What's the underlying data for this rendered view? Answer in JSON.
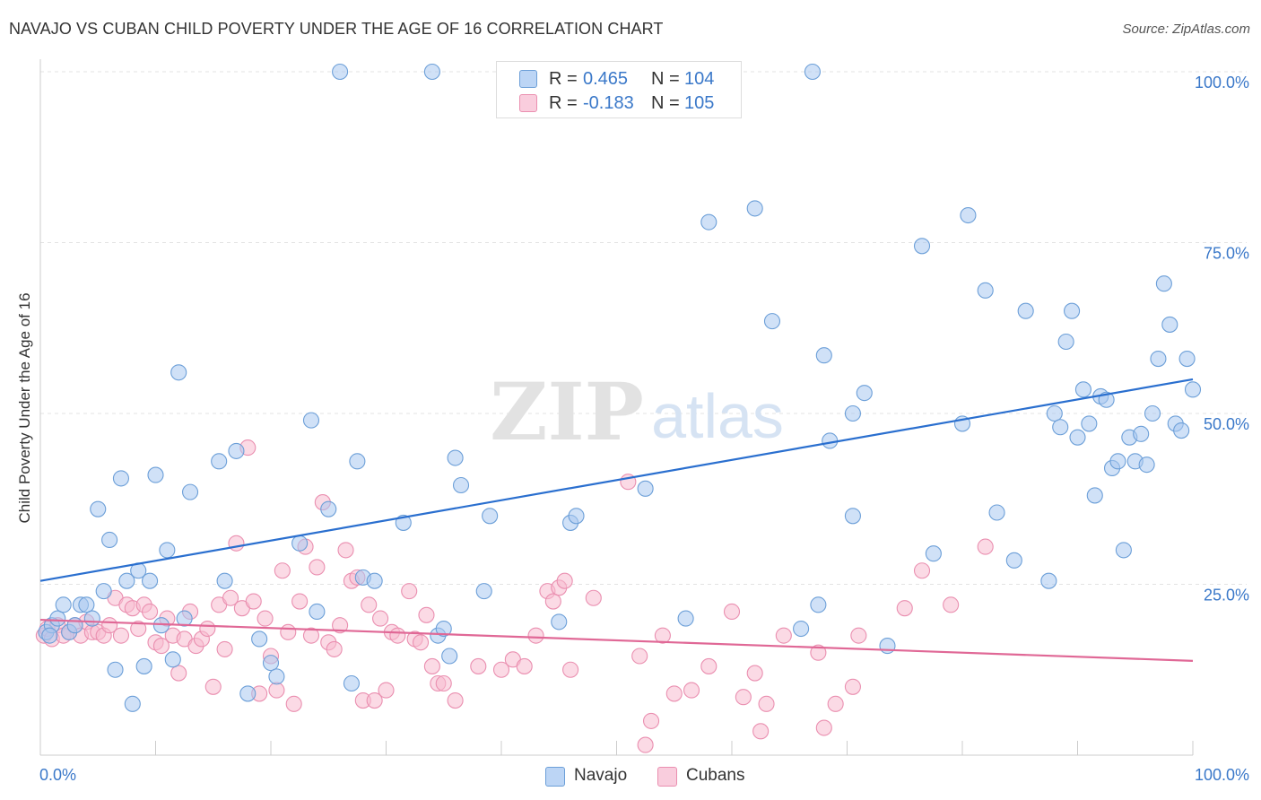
{
  "title": "NAVAJO VS CUBAN CHILD POVERTY UNDER THE AGE OF 16 CORRELATION CHART",
  "source": "Source: ZipAtlas.com",
  "watermark": {
    "zip": "ZIP",
    "atlas": "atlas"
  },
  "legend": {
    "navajo": {
      "r_label": "R =",
      "r_value": "0.465",
      "n_label": "N =",
      "n_value": "104"
    },
    "cubans": {
      "r_label": "R =",
      "r_value": "-0.183",
      "n_label": "N =",
      "n_value": "105"
    }
  },
  "bottom_legend": {
    "navajo": "Navajo",
    "cubans": "Cubans"
  },
  "colors": {
    "navajo_fill": "#a9c8f0",
    "navajo_stroke": "#6c9fd8",
    "navajo_line": "#2a6fcf",
    "cubans_fill": "#f7bcd0",
    "cubans_stroke": "#ea8fb0",
    "cubans_line": "#e06896",
    "tick_label": "#3a78c9"
  },
  "chart_data": {
    "type": "scatter",
    "title": "NAVAJO VS CUBAN CHILD POVERTY UNDER THE AGE OF 16 CORRELATION CHART",
    "xlabel": "",
    "ylabel": "Child Poverty Under the Age of 16",
    "xlim": [
      0,
      100
    ],
    "ylim": [
      0,
      100
    ],
    "x_tick_labels": [
      "0.0%",
      "100.0%"
    ],
    "y_ticks": [
      25,
      50,
      75,
      100
    ],
    "y_tick_labels": [
      "25.0%",
      "50.0%",
      "75.0%",
      "100.0%"
    ],
    "grid": true,
    "legend_placement": "top-center",
    "series": [
      {
        "name": "Navajo",
        "r": 0.465,
        "n": 104,
        "trend": [
          [
            0,
            25.5
          ],
          [
            100,
            55.0
          ]
        ],
        "points": [
          [
            0.5,
            18
          ],
          [
            1.0,
            19
          ],
          [
            1.5,
            20
          ],
          [
            2.0,
            22
          ],
          [
            2.5,
            18
          ],
          [
            3.0,
            19
          ],
          [
            3.5,
            22
          ],
          [
            4.0,
            22
          ],
          [
            4.5,
            20
          ],
          [
            5.0,
            36
          ],
          [
            5.5,
            24
          ],
          [
            6.0,
            31.5
          ],
          [
            6.5,
            12.5
          ],
          [
            7.0,
            40.5
          ],
          [
            7.5,
            25.5
          ],
          [
            8.0,
            7.5
          ],
          [
            8.5,
            27
          ],
          [
            9.0,
            13
          ],
          [
            9.5,
            25.5
          ],
          [
            10.0,
            41
          ],
          [
            10.5,
            19
          ],
          [
            11.0,
            30
          ],
          [
            11.5,
            14
          ],
          [
            12.0,
            56
          ],
          [
            12.5,
            20
          ],
          [
            13.0,
            38.5
          ],
          [
            15.5,
            43
          ],
          [
            16.0,
            25.5
          ],
          [
            17.0,
            44.5
          ],
          [
            18.0,
            9
          ],
          [
            19.0,
            17
          ],
          [
            20.0,
            13.5
          ],
          [
            20.5,
            11.5
          ],
          [
            22.5,
            31
          ],
          [
            23.5,
            49
          ],
          [
            24.0,
            21
          ],
          [
            25.0,
            36
          ],
          [
            26.0,
            100
          ],
          [
            27.0,
            10.5
          ],
          [
            27.5,
            43
          ],
          [
            28.0,
            26
          ],
          [
            29.0,
            25.5
          ],
          [
            31.5,
            34
          ],
          [
            34.0,
            100
          ],
          [
            34.5,
            17.5
          ],
          [
            35.0,
            18.5
          ],
          [
            35.5,
            14.5
          ],
          [
            36.0,
            43.5
          ],
          [
            36.5,
            39.5
          ],
          [
            38.5,
            24
          ],
          [
            39.0,
            35
          ],
          [
            43.0,
            100
          ],
          [
            45.0,
            19.5
          ],
          [
            46.0,
            34
          ],
          [
            46.5,
            35
          ],
          [
            52.5,
            39
          ],
          [
            56.0,
            20
          ],
          [
            58.0,
            78
          ],
          [
            62.0,
            80
          ],
          [
            63.5,
            63.5
          ],
          [
            66.0,
            18.5
          ],
          [
            67.5,
            22
          ],
          [
            67.0,
            100
          ],
          [
            68.0,
            58.5
          ],
          [
            68.5,
            46
          ],
          [
            70.5,
            50
          ],
          [
            70.5,
            35
          ],
          [
            71.5,
            53
          ],
          [
            73.5,
            16
          ],
          [
            76.5,
            74.5
          ],
          [
            77.5,
            29.5
          ],
          [
            80.0,
            48.5
          ],
          [
            80.5,
            79
          ],
          [
            82.0,
            68
          ],
          [
            83.0,
            35.5
          ],
          [
            84.5,
            28.5
          ],
          [
            85.5,
            65
          ],
          [
            87.5,
            25.5
          ],
          [
            88.0,
            50
          ],
          [
            88.5,
            48
          ],
          [
            89.0,
            60.5
          ],
          [
            89.5,
            65
          ],
          [
            90.0,
            46.5
          ],
          [
            90.5,
            53.5
          ],
          [
            91.0,
            48.5
          ],
          [
            91.5,
            38
          ],
          [
            92.0,
            52.5
          ],
          [
            92.5,
            52
          ],
          [
            93.0,
            42
          ],
          [
            93.5,
            43
          ],
          [
            94.0,
            30
          ],
          [
            94.5,
            46.5
          ],
          [
            95.0,
            43
          ],
          [
            95.5,
            47
          ],
          [
            96.0,
            42.5
          ],
          [
            96.5,
            50
          ],
          [
            97.0,
            58
          ],
          [
            97.5,
            69
          ],
          [
            98.0,
            63
          ],
          [
            98.5,
            48.5
          ],
          [
            99.0,
            47.5
          ],
          [
            99.5,
            58
          ],
          [
            100.0,
            53.5
          ],
          [
            0.8,
            17.5
          ]
        ]
      },
      {
        "name": "Cubans",
        "r": -0.183,
        "n": 105,
        "trend": [
          [
            0,
            19.8
          ],
          [
            100,
            13.8
          ]
        ],
        "points": [
          [
            0.3,
            17.5
          ],
          [
            0.6,
            18.5
          ],
          [
            1.0,
            17
          ],
          [
            1.5,
            19
          ],
          [
            2.0,
            17.5
          ],
          [
            2.5,
            18
          ],
          [
            3.0,
            19
          ],
          [
            3.5,
            17.5
          ],
          [
            4.0,
            19.5
          ],
          [
            4.5,
            18
          ],
          [
            5.0,
            18
          ],
          [
            5.5,
            17.5
          ],
          [
            6.0,
            19
          ],
          [
            6.5,
            23
          ],
          [
            7.0,
            17.5
          ],
          [
            7.5,
            22
          ],
          [
            8.0,
            21.5
          ],
          [
            8.5,
            18.5
          ],
          [
            9.0,
            22
          ],
          [
            9.5,
            21
          ],
          [
            10.0,
            16.5
          ],
          [
            10.5,
            16
          ],
          [
            11.0,
            20
          ],
          [
            11.5,
            17.5
          ],
          [
            12.0,
            12
          ],
          [
            12.5,
            17
          ],
          [
            13.0,
            21
          ],
          [
            13.5,
            16
          ],
          [
            14.0,
            17
          ],
          [
            14.5,
            18.5
          ],
          [
            15.0,
            10
          ],
          [
            15.5,
            22
          ],
          [
            16.0,
            15.5
          ],
          [
            16.5,
            23
          ],
          [
            17.0,
            31
          ],
          [
            17.5,
            21.5
          ],
          [
            18.0,
            45
          ],
          [
            18.5,
            22.5
          ],
          [
            19.0,
            9
          ],
          [
            19.5,
            20
          ],
          [
            20.0,
            14.5
          ],
          [
            20.5,
            9.5
          ],
          [
            21.0,
            27
          ],
          [
            21.5,
            18
          ],
          [
            22.0,
            7.5
          ],
          [
            22.5,
            22.5
          ],
          [
            23.0,
            30.5
          ],
          [
            23.5,
            17.5
          ],
          [
            24.0,
            27.5
          ],
          [
            24.5,
            37
          ],
          [
            25.0,
            16.5
          ],
          [
            25.5,
            15.5
          ],
          [
            26.0,
            19
          ],
          [
            26.5,
            30
          ],
          [
            27.0,
            25.5
          ],
          [
            27.5,
            26
          ],
          [
            28.0,
            8
          ],
          [
            28.5,
            22
          ],
          [
            29.0,
            8
          ],
          [
            29.5,
            20
          ],
          [
            30.0,
            9.5
          ],
          [
            30.5,
            18
          ],
          [
            31.0,
            17.5
          ],
          [
            32.0,
            24
          ],
          [
            32.5,
            17
          ],
          [
            33.0,
            16.5
          ],
          [
            33.5,
            20.5
          ],
          [
            34.0,
            13
          ],
          [
            34.5,
            10.5
          ],
          [
            35.0,
            10.5
          ],
          [
            36.0,
            8
          ],
          [
            38.0,
            13
          ],
          [
            40.0,
            12.5
          ],
          [
            41.0,
            14
          ],
          [
            42.0,
            13
          ],
          [
            43.0,
            17.5
          ],
          [
            44.0,
            24
          ],
          [
            44.5,
            22.5
          ],
          [
            45.0,
            24.5
          ],
          [
            45.5,
            25.5
          ],
          [
            46.0,
            12.5
          ],
          [
            48.0,
            23
          ],
          [
            51.0,
            40
          ],
          [
            52.0,
            14.5
          ],
          [
            53.0,
            5
          ],
          [
            54.0,
            17.5
          ],
          [
            55.0,
            9
          ],
          [
            56.5,
            9.5
          ],
          [
            58.0,
            13
          ],
          [
            60.0,
            21
          ],
          [
            61.0,
            8.5
          ],
          [
            62.0,
            12
          ],
          [
            63.0,
            7.5
          ],
          [
            64.5,
            17.5
          ],
          [
            67.5,
            15
          ],
          [
            69.0,
            7.5
          ],
          [
            70.5,
            10
          ],
          [
            75.0,
            21.5
          ],
          [
            76.5,
            27
          ],
          [
            79.0,
            22
          ],
          [
            82.0,
            30.5
          ],
          [
            52.5,
            1.5
          ],
          [
            62.5,
            3.5
          ],
          [
            71.0,
            17.5
          ],
          [
            68.0,
            4
          ]
        ]
      }
    ]
  }
}
